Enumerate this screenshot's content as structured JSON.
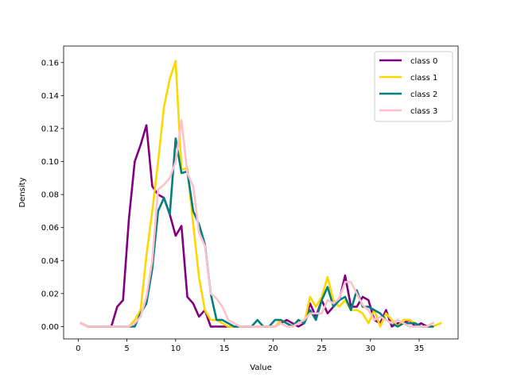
{
  "chart_data": {
    "type": "line",
    "title": "",
    "xlabel": "Value",
    "ylabel": "Density",
    "xlim": [
      -1.5,
      39.0
    ],
    "ylim": [
      -0.0075,
      0.17
    ],
    "xticks": [
      0,
      5,
      10,
      15,
      20,
      25,
      30,
      35
    ],
    "yticks": [
      0.0,
      0.02,
      0.04,
      0.06,
      0.08,
      0.1,
      0.12,
      0.14,
      0.16
    ],
    "ytick_labels": [
      "0.00",
      "0.02",
      "0.04",
      "0.06",
      "0.08",
      "0.10",
      "0.12",
      "0.14",
      "0.16"
    ],
    "grid": false,
    "legend_position": "top-right",
    "series": [
      {
        "name": "class 0",
        "color": "#800080",
        "x": [
          0.3,
          1.0,
          1.6,
          2.2,
          2.8,
          3.4,
          4.0,
          4.6,
          5.2,
          5.8,
          6.4,
          7.0,
          7.6,
          8.2,
          8.8,
          9.4,
          10.0,
          10.6,
          11.2,
          11.8,
          12.4,
          13.0,
          13.6,
          14.2,
          14.8,
          15.4,
          16.0,
          16.6,
          17.2,
          17.8,
          18.4,
          19.0,
          19.6,
          20.2,
          20.8,
          21.4,
          22.0,
          22.6,
          23.2,
          23.8,
          24.4,
          25.0,
          25.6,
          26.2,
          26.8,
          27.4,
          28.0,
          28.6,
          29.2,
          29.8,
          30.4,
          31.0,
          31.6,
          32.2,
          32.8,
          33.4,
          34.0,
          34.6,
          35.2,
          35.8,
          36.4
        ],
        "values": [
          0.002,
          0.0,
          0.0,
          0.0,
          0.0,
          0.0,
          0.012,
          0.016,
          0.065,
          0.1,
          0.11,
          0.122,
          0.085,
          0.08,
          0.078,
          0.068,
          0.055,
          0.061,
          0.018,
          0.014,
          0.006,
          0.01,
          0.0,
          0.0,
          0.0,
          0.0,
          0.0,
          0.0,
          0.0,
          0.0,
          0.0,
          0.0,
          0.0,
          0.0,
          0.002,
          0.004,
          0.002,
          0.0,
          0.002,
          0.014,
          0.006,
          0.016,
          0.008,
          0.012,
          0.016,
          0.031,
          0.012,
          0.012,
          0.018,
          0.016,
          0.004,
          0.002,
          0.01,
          0.0,
          0.002,
          0.002,
          0.004,
          0.0,
          0.002,
          0.0,
          0.002
        ]
      },
      {
        "name": "class 1",
        "color": "#FFD700",
        "x": [
          0.3,
          1.0,
          1.6,
          2.2,
          2.8,
          3.4,
          4.0,
          4.6,
          5.2,
          5.8,
          6.4,
          7.0,
          7.6,
          8.2,
          8.8,
          9.4,
          10.0,
          10.3,
          10.6,
          11.2,
          11.8,
          12.4,
          13.0,
          13.6,
          14.2,
          14.8,
          15.4,
          16.0,
          16.6,
          17.2,
          17.8,
          18.4,
          19.0,
          19.6,
          20.2,
          20.8,
          21.4,
          22.0,
          22.6,
          23.2,
          23.8,
          24.4,
          25.0,
          25.6,
          26.2,
          26.8,
          27.4,
          28.0,
          28.6,
          29.2,
          29.8,
          30.4,
          31.0,
          31.6,
          32.2,
          32.8,
          33.4,
          34.0,
          34.6,
          35.2,
          35.8,
          36.4,
          37.2
        ],
        "values": [
          0.002,
          0.0,
          0.0,
          0.0,
          0.0,
          0.0,
          0.0,
          0.0,
          0.0,
          0.004,
          0.01,
          0.043,
          0.07,
          0.1,
          0.133,
          0.15,
          0.161,
          0.128,
          0.095,
          0.096,
          0.062,
          0.03,
          0.01,
          0.004,
          0.004,
          0.002,
          0.0,
          0.0,
          0.0,
          0.0,
          0.0,
          0.0,
          0.0,
          0.0,
          0.0,
          0.004,
          0.002,
          0.0,
          0.004,
          0.002,
          0.018,
          0.012,
          0.018,
          0.03,
          0.016,
          0.012,
          0.016,
          0.01,
          0.01,
          0.008,
          0.002,
          0.01,
          0.0,
          0.008,
          0.004,
          0.0,
          0.004,
          0.004,
          0.002,
          0.0,
          0.0,
          0.0,
          0.002
        ]
      },
      {
        "name": "class 2",
        "color": "#008080",
        "x": [
          0.3,
          1.0,
          1.6,
          2.2,
          2.8,
          3.4,
          4.0,
          4.6,
          5.2,
          5.8,
          6.4,
          7.0,
          7.6,
          8.2,
          8.8,
          9.4,
          10.0,
          10.6,
          11.2,
          11.8,
          12.4,
          13.0,
          13.6,
          14.2,
          14.8,
          15.4,
          16.0,
          16.6,
          17.2,
          17.8,
          18.4,
          19.0,
          19.6,
          20.2,
          20.8,
          21.4,
          22.0,
          22.6,
          23.2,
          23.8,
          24.4,
          25.0,
          25.6,
          26.2,
          26.8,
          27.4,
          28.0,
          28.6,
          29.2,
          29.8,
          30.4,
          31.0,
          31.6,
          32.2,
          32.8,
          33.4,
          34.0,
          34.6,
          35.2,
          35.8,
          36.4
        ],
        "values": [
          0.002,
          0.0,
          0.0,
          0.0,
          0.0,
          0.0,
          0.0,
          0.0,
          0.0,
          0.0,
          0.008,
          0.014,
          0.035,
          0.07,
          0.078,
          0.068,
          0.114,
          0.093,
          0.094,
          0.07,
          0.062,
          0.05,
          0.02,
          0.004,
          0.004,
          0.002,
          0.0,
          0.0,
          0.0,
          0.0,
          0.004,
          0.0,
          0.0,
          0.004,
          0.004,
          0.002,
          0.0,
          0.004,
          0.002,
          0.01,
          0.004,
          0.016,
          0.024,
          0.012,
          0.016,
          0.018,
          0.01,
          0.022,
          0.012,
          0.012,
          0.01,
          0.008,
          0.004,
          0.002,
          0.0,
          0.002,
          0.002,
          0.002,
          0.0,
          0.0,
          0.0
        ]
      },
      {
        "name": "class 3",
        "color": "#FFC0CB",
        "x": [
          0.3,
          1.0,
          1.6,
          2.2,
          2.8,
          3.4,
          4.0,
          4.6,
          5.2,
          5.8,
          6.4,
          7.0,
          7.6,
          8.2,
          8.8,
          9.4,
          10.0,
          10.6,
          11.2,
          11.8,
          12.4,
          13.0,
          13.6,
          14.2,
          14.8,
          15.4,
          16.0,
          16.6,
          17.2,
          17.8,
          18.4,
          19.0,
          19.6,
          20.2,
          20.8,
          21.4,
          22.0,
          22.6,
          23.2,
          23.8,
          24.4,
          25.0,
          25.6,
          26.2,
          26.8,
          27.4,
          28.0,
          28.6,
          29.2,
          29.8,
          30.4,
          31.0,
          31.6,
          32.2,
          32.8,
          33.4,
          34.0,
          34.6,
          35.2,
          35.8,
          36.4
        ],
        "values": [
          0.002,
          0.0,
          0.0,
          0.0,
          0.0,
          0.0,
          0.0,
          0.0,
          0.0,
          0.002,
          0.006,
          0.018,
          0.04,
          0.083,
          0.086,
          0.09,
          0.1,
          0.125,
          0.093,
          0.085,
          0.057,
          0.049,
          0.02,
          0.017,
          0.012,
          0.004,
          0.002,
          0.0,
          0.0,
          0.0,
          0.0,
          0.0,
          0.0,
          0.0,
          0.002,
          0.0,
          0.0,
          0.002,
          0.004,
          0.008,
          0.008,
          0.008,
          0.016,
          0.014,
          0.017,
          0.027,
          0.027,
          0.02,
          0.013,
          0.01,
          0.004,
          0.006,
          0.004,
          0.002,
          0.004,
          0.002,
          0.0,
          0.0,
          0.0,
          0.0,
          0.002
        ]
      }
    ]
  }
}
